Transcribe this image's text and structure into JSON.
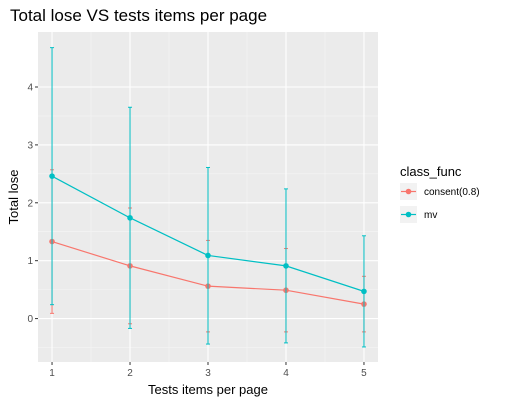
{
  "chart_data": {
    "type": "line",
    "title": "Total lose VS tests items per page",
    "xlabel": "Tests items per page",
    "ylabel": "Total lose",
    "x": [
      1,
      2,
      3,
      4,
      5
    ],
    "xticks": [
      "1",
      "2",
      "3",
      "4",
      "5"
    ],
    "yticks": [
      "0",
      "1",
      "2",
      "3",
      "4"
    ],
    "xlim": [
      0.82,
      5.18
    ],
    "ylim": [
      -0.75,
      4.95
    ],
    "grid": true,
    "legend": {
      "title": "class_func",
      "position": "right"
    },
    "series": [
      {
        "name": "consent(0.8)",
        "color": "#F8766D",
        "values": [
          1.33,
          0.91,
          0.56,
          0.49,
          0.25
        ],
        "error_low": [
          0.09,
          -0.09,
          -0.23,
          -0.23,
          -0.23
        ],
        "error_high": [
          2.57,
          1.91,
          1.35,
          1.21,
          0.73
        ]
      },
      {
        "name": "mv",
        "color": "#00BFC4",
        "values": [
          2.46,
          1.74,
          1.09,
          0.91,
          0.47
        ],
        "error_low": [
          0.24,
          -0.17,
          -0.44,
          -0.42,
          -0.49
        ],
        "error_high": [
          4.68,
          3.65,
          2.61,
          2.24,
          1.43
        ]
      }
    ]
  }
}
